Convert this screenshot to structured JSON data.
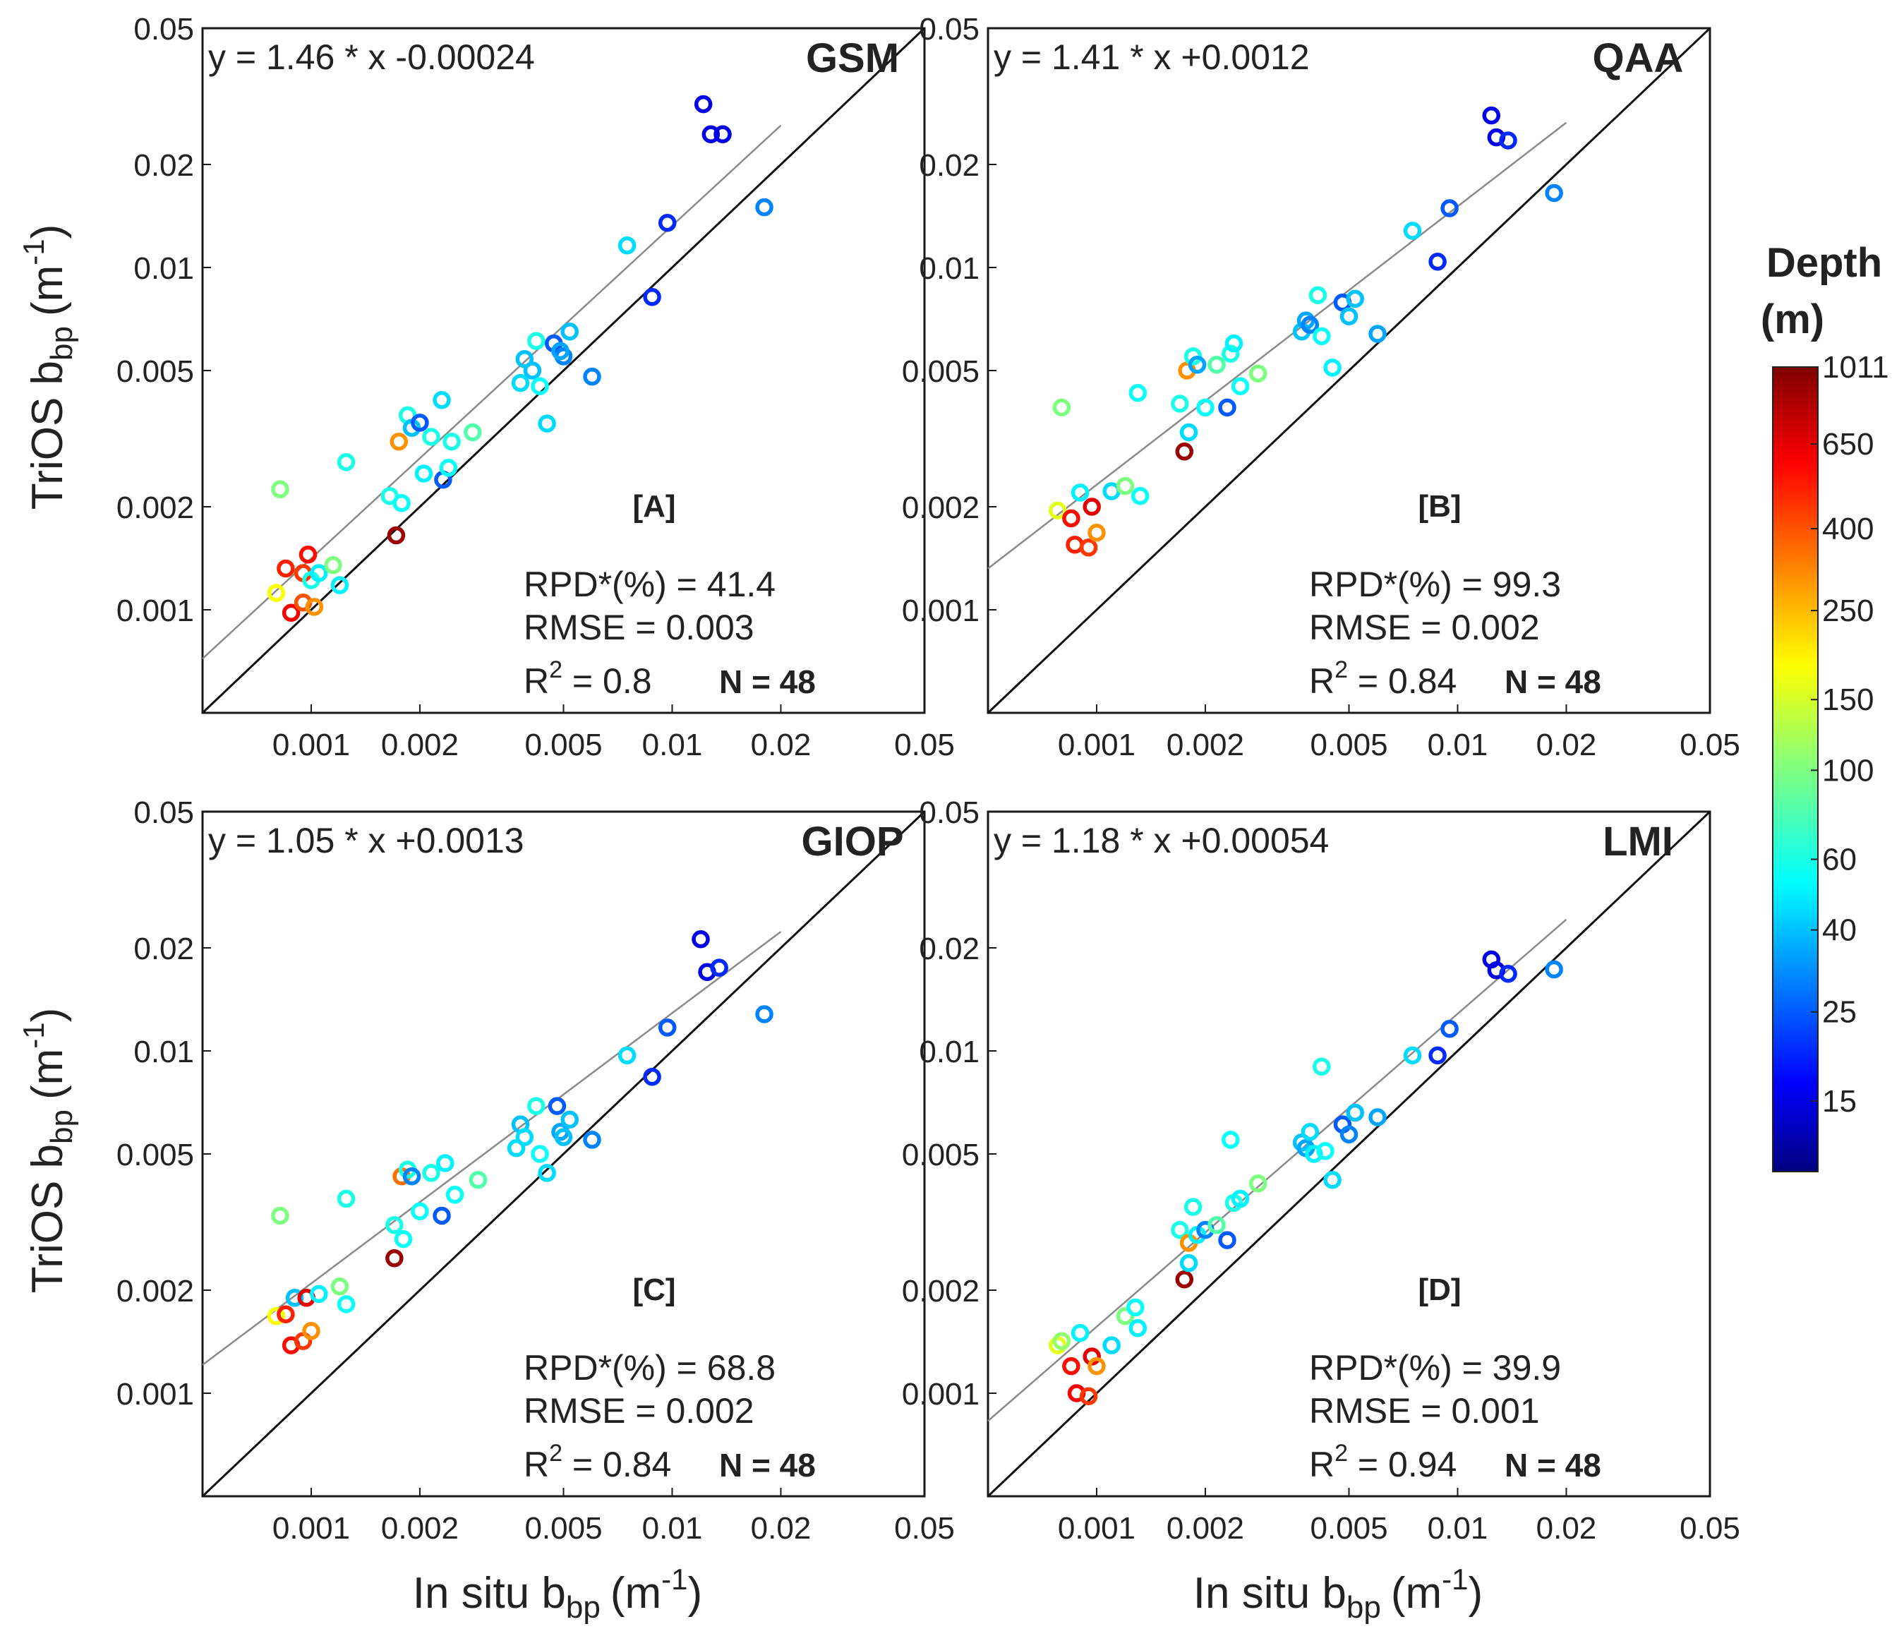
{
  "ylabel": "TriOS b",
  "ylabel_sub": "bp",
  "ylabel_unit": "(m",
  "ylabel_exp": "-1",
  "xlabel": "In situ b",
  "xlabel_sub": "bp",
  "xlabel_unit": "(m",
  "xlabel_exp": "-1",
  "colorbar": {
    "title1": "Depth",
    "title2": "(m)",
    "ticks": [
      "1011",
      "650",
      "400",
      "250",
      "150",
      "100",
      "60",
      "40",
      "25",
      "15"
    ],
    "stops": [
      {
        "v": 0.0,
        "c": "#00007f"
      },
      {
        "v": 0.11,
        "c": "#0000ff"
      },
      {
        "v": 0.36,
        "c": "#00ffff"
      },
      {
        "v": 0.5,
        "c": "#80ff80"
      },
      {
        "v": 0.63,
        "c": "#ffff00"
      },
      {
        "v": 0.88,
        "c": "#ff0000"
      },
      {
        "v": 1.0,
        "c": "#7f0000"
      }
    ]
  },
  "chart_data": [
    {
      "type": "scatter",
      "id": "A",
      "title": "GSM",
      "panel_label": "[A]",
      "equation": "y = 1.46 * x -0.00024",
      "rpd": "RPD*(%) = 41.4",
      "rmse": "RMSE = 0.003",
      "r2_prefix": "R",
      "r2_sup": "2",
      "r2_value": " = 0.8",
      "n": "N = 48",
      "xlim": [
        0.0005,
        0.05
      ],
      "ylim": [
        0.0005,
        0.05
      ],
      "xticks": [
        "0.001",
        "0.002",
        "0.005",
        "0.01",
        "0.02",
        "0.05"
      ],
      "yticks": [
        "0.001",
        "0.002",
        "0.005",
        "0.01",
        "0.02",
        "0.05"
      ],
      "fit": {
        "x1": 0.0005,
        "y1": 0.00072,
        "x2": 0.02,
        "y2": 0.026
      },
      "points": [
        {
          "x": 0.00082,
          "y": 0.00225,
          "d": 100
        },
        {
          "x": 0.0008,
          "y": 0.00112,
          "d": 180
        },
        {
          "x": 0.00085,
          "y": 0.00132,
          "d": 500
        },
        {
          "x": 0.00088,
          "y": 0.00098,
          "d": 600
        },
        {
          "x": 0.00095,
          "y": 0.00105,
          "d": 400
        },
        {
          "x": 0.00102,
          "y": 0.00102,
          "d": 300
        },
        {
          "x": 0.00098,
          "y": 0.00145,
          "d": 550
        },
        {
          "x": 0.00095,
          "y": 0.00128,
          "d": 450
        },
        {
          "x": 0.001,
          "y": 0.00122,
          "d": 60
        },
        {
          "x": 0.00105,
          "y": 0.00128,
          "d": 50
        },
        {
          "x": 0.00115,
          "y": 0.00135,
          "d": 100
        },
        {
          "x": 0.0012,
          "y": 0.00118,
          "d": 50
        },
        {
          "x": 0.00125,
          "y": 0.0027,
          "d": 60
        },
        {
          "x": 0.00165,
          "y": 0.00215,
          "d": 60
        },
        {
          "x": 0.00172,
          "y": 0.00165,
          "d": 900
        },
        {
          "x": 0.00175,
          "y": 0.0031,
          "d": 300
        },
        {
          "x": 0.00178,
          "y": 0.00205,
          "d": 55
        },
        {
          "x": 0.00185,
          "y": 0.0037,
          "d": 60
        },
        {
          "x": 0.0019,
          "y": 0.0034,
          "d": 40
        },
        {
          "x": 0.002,
          "y": 0.00352,
          "d": 25
        },
        {
          "x": 0.00205,
          "y": 0.0025,
          "d": 50
        },
        {
          "x": 0.00215,
          "y": 0.0032,
          "d": 60
        },
        {
          "x": 0.0023,
          "y": 0.0041,
          "d": 45
        },
        {
          "x": 0.00232,
          "y": 0.0024,
          "d": 25
        },
        {
          "x": 0.0024,
          "y": 0.0026,
          "d": 55
        },
        {
          "x": 0.00245,
          "y": 0.0031,
          "d": 60
        },
        {
          "x": 0.0028,
          "y": 0.0033,
          "d": 80
        },
        {
          "x": 0.0038,
          "y": 0.0046,
          "d": 45
        },
        {
          "x": 0.0039,
          "y": 0.0054,
          "d": 40
        },
        {
          "x": 0.0041,
          "y": 0.005,
          "d": 40
        },
        {
          "x": 0.0042,
          "y": 0.0061,
          "d": 60
        },
        {
          "x": 0.0043,
          "y": 0.0045,
          "d": 55
        },
        {
          "x": 0.0045,
          "y": 0.0035,
          "d": 45
        },
        {
          "x": 0.0047,
          "y": 0.006,
          "d": 25
        },
        {
          "x": 0.005,
          "y": 0.0055,
          "d": 30
        },
        {
          "x": 0.0052,
          "y": 0.0065,
          "d": 40
        },
        {
          "x": 0.0049,
          "y": 0.0057,
          "d": 35
        },
        {
          "x": 0.006,
          "y": 0.0048,
          "d": 30
        },
        {
          "x": 0.0075,
          "y": 0.0116,
          "d": 45
        },
        {
          "x": 0.0088,
          "y": 0.0082,
          "d": 20
        },
        {
          "x": 0.0097,
          "y": 0.0135,
          "d": 20
        },
        {
          "x": 0.0122,
          "y": 0.03,
          "d": 15
        },
        {
          "x": 0.0128,
          "y": 0.0245,
          "d": 15
        },
        {
          "x": 0.0138,
          "y": 0.0245,
          "d": 15
        },
        {
          "x": 0.018,
          "y": 0.015,
          "d": 30
        }
      ]
    },
    {
      "type": "scatter",
      "id": "B",
      "title": "QAA",
      "panel_label": "[B]",
      "equation": "y = 1.41 * x +0.0012",
      "rpd": "RPD*(%) = 99.3",
      "rmse": "RMSE = 0.002",
      "r2_prefix": "R",
      "r2_sup": "2",
      "r2_value": " = 0.84",
      "n": "N = 48",
      "xlim": [
        0.0005,
        0.05
      ],
      "ylim": [
        0.0005,
        0.05
      ],
      "xticks": [
        "0.001",
        "0.002",
        "0.005",
        "0.01",
        "0.02",
        "0.05"
      ],
      "yticks": [
        "0.001",
        "0.002",
        "0.005",
        "0.01",
        "0.02",
        "0.05"
      ],
      "fit": {
        "x1": 0.0005,
        "y1": 0.00132,
        "x2": 0.02,
        "y2": 0.0265
      },
      "points": [
        {
          "x": 0.00078,
          "y": 0.00195,
          "d": 160
        },
        {
          "x": 0.0008,
          "y": 0.0039,
          "d": 100
        },
        {
          "x": 0.00085,
          "y": 0.00185,
          "d": 550
        },
        {
          "x": 0.00087,
          "y": 0.00155,
          "d": 500
        },
        {
          "x": 0.0009,
          "y": 0.0022,
          "d": 50
        },
        {
          "x": 0.00095,
          "y": 0.00152,
          "d": 450
        },
        {
          "x": 0.00097,
          "y": 0.002,
          "d": 650
        },
        {
          "x": 0.001,
          "y": 0.00168,
          "d": 300
        },
        {
          "x": 0.0011,
          "y": 0.00222,
          "d": 45
        },
        {
          "x": 0.0012,
          "y": 0.0023,
          "d": 100
        },
        {
          "x": 0.0013,
          "y": 0.0043,
          "d": 55
        },
        {
          "x": 0.00132,
          "y": 0.00215,
          "d": 55
        },
        {
          "x": 0.0017,
          "y": 0.004,
          "d": 60
        },
        {
          "x": 0.00175,
          "y": 0.0029,
          "d": 900
        },
        {
          "x": 0.0018,
          "y": 0.0033,
          "d": 45
        },
        {
          "x": 0.00178,
          "y": 0.005,
          "d": 300
        },
        {
          "x": 0.00185,
          "y": 0.0055,
          "d": 60
        },
        {
          "x": 0.0019,
          "y": 0.0052,
          "d": 35
        },
        {
          "x": 0.002,
          "y": 0.0039,
          "d": 55
        },
        {
          "x": 0.00215,
          "y": 0.0052,
          "d": 80
        },
        {
          "x": 0.0023,
          "y": 0.0039,
          "d": 25
        },
        {
          "x": 0.00235,
          "y": 0.0056,
          "d": 60
        },
        {
          "x": 0.0024,
          "y": 0.006,
          "d": 50
        },
        {
          "x": 0.0025,
          "y": 0.0045,
          "d": 55
        },
        {
          "x": 0.0028,
          "y": 0.0049,
          "d": 100
        },
        {
          "x": 0.0037,
          "y": 0.0065,
          "d": 40
        },
        {
          "x": 0.0038,
          "y": 0.007,
          "d": 35
        },
        {
          "x": 0.0039,
          "y": 0.0068,
          "d": 30
        },
        {
          "x": 0.0041,
          "y": 0.0083,
          "d": 60
        },
        {
          "x": 0.0042,
          "y": 0.0063,
          "d": 55
        },
        {
          "x": 0.0045,
          "y": 0.0051,
          "d": 50
        },
        {
          "x": 0.0048,
          "y": 0.0079,
          "d": 25
        },
        {
          "x": 0.005,
          "y": 0.0072,
          "d": 40
        },
        {
          "x": 0.0052,
          "y": 0.0081,
          "d": 40
        },
        {
          "x": 0.006,
          "y": 0.0064,
          "d": 35
        },
        {
          "x": 0.0075,
          "y": 0.0128,
          "d": 45
        },
        {
          "x": 0.0088,
          "y": 0.0104,
          "d": 20
        },
        {
          "x": 0.0095,
          "y": 0.0149,
          "d": 25
        },
        {
          "x": 0.0124,
          "y": 0.0278,
          "d": 15
        },
        {
          "x": 0.0128,
          "y": 0.024,
          "d": 15
        },
        {
          "x": 0.0138,
          "y": 0.0235,
          "d": 20
        },
        {
          "x": 0.0185,
          "y": 0.0165,
          "d": 30
        }
      ]
    },
    {
      "type": "scatter",
      "id": "C",
      "title": "GIOP",
      "panel_label": "[C]",
      "equation": "y = 1.05 * x +0.0013",
      "rpd": "RPD*(%) = 68.8",
      "rmse": "RMSE = 0.002",
      "r2_prefix": "R",
      "r2_sup": "2",
      "r2_value": " = 0.84",
      "n": "N = 48",
      "xlim": [
        0.0005,
        0.05
      ],
      "ylim": [
        0.0005,
        0.05
      ],
      "xticks": [
        "0.001",
        "0.002",
        "0.005",
        "0.01",
        "0.02",
        "0.05"
      ],
      "yticks": [
        "0.001",
        "0.002",
        "0.005",
        "0.01",
        "0.02",
        "0.05"
      ],
      "fit": {
        "x1": 0.0005,
        "y1": 0.00121,
        "x2": 0.02,
        "y2": 0.0223
      },
      "points": [
        {
          "x": 0.00082,
          "y": 0.0033,
          "d": 100
        },
        {
          "x": 0.0008,
          "y": 0.00168,
          "d": 180
        },
        {
          "x": 0.00085,
          "y": 0.0017,
          "d": 500
        },
        {
          "x": 0.00088,
          "y": 0.00138,
          "d": 550
        },
        {
          "x": 0.0009,
          "y": 0.0019,
          "d": 40
        },
        {
          "x": 0.00095,
          "y": 0.00142,
          "d": 450
        },
        {
          "x": 0.00097,
          "y": 0.0019,
          "d": 650
        },
        {
          "x": 0.001,
          "y": 0.00152,
          "d": 300
        },
        {
          "x": 0.00105,
          "y": 0.00195,
          "d": 50
        },
        {
          "x": 0.0012,
          "y": 0.00205,
          "d": 100
        },
        {
          "x": 0.00125,
          "y": 0.00182,
          "d": 55
        },
        {
          "x": 0.00125,
          "y": 0.0037,
          "d": 60
        },
        {
          "x": 0.0017,
          "y": 0.0031,
          "d": 60
        },
        {
          "x": 0.0017,
          "y": 0.00248,
          "d": 900
        },
        {
          "x": 0.0018,
          "y": 0.00282,
          "d": 55
        },
        {
          "x": 0.00178,
          "y": 0.0043,
          "d": 350
        },
        {
          "x": 0.00185,
          "y": 0.0045,
          "d": 60
        },
        {
          "x": 0.0019,
          "y": 0.0043,
          "d": 30
        },
        {
          "x": 0.002,
          "y": 0.0034,
          "d": 55
        },
        {
          "x": 0.00215,
          "y": 0.0044,
          "d": 60
        },
        {
          "x": 0.0023,
          "y": 0.0033,
          "d": 25
        },
        {
          "x": 0.00235,
          "y": 0.0047,
          "d": 50
        },
        {
          "x": 0.0025,
          "y": 0.0038,
          "d": 55
        },
        {
          "x": 0.0029,
          "y": 0.0042,
          "d": 80
        },
        {
          "x": 0.0037,
          "y": 0.0052,
          "d": 45
        },
        {
          "x": 0.0038,
          "y": 0.0061,
          "d": 40
        },
        {
          "x": 0.0039,
          "y": 0.0056,
          "d": 45
        },
        {
          "x": 0.0042,
          "y": 0.0069,
          "d": 60
        },
        {
          "x": 0.0043,
          "y": 0.005,
          "d": 55
        },
        {
          "x": 0.0045,
          "y": 0.0044,
          "d": 45
        },
        {
          "x": 0.0048,
          "y": 0.0069,
          "d": 25
        },
        {
          "x": 0.0049,
          "y": 0.0058,
          "d": 35
        },
        {
          "x": 0.005,
          "y": 0.0056,
          "d": 40
        },
        {
          "x": 0.0052,
          "y": 0.0063,
          "d": 40
        },
        {
          "x": 0.006,
          "y": 0.0055,
          "d": 30
        },
        {
          "x": 0.0075,
          "y": 0.0097,
          "d": 45
        },
        {
          "x": 0.0088,
          "y": 0.0084,
          "d": 20
        },
        {
          "x": 0.0097,
          "y": 0.0117,
          "d": 25
        },
        {
          "x": 0.012,
          "y": 0.0212,
          "d": 15
        },
        {
          "x": 0.0125,
          "y": 0.017,
          "d": 15
        },
        {
          "x": 0.0135,
          "y": 0.0175,
          "d": 20
        },
        {
          "x": 0.018,
          "y": 0.0128,
          "d": 30
        }
      ]
    },
    {
      "type": "scatter",
      "id": "D",
      "title": "LMI",
      "panel_label": "[D]",
      "equation": "y = 1.18 * x +0.00054",
      "rpd": "RPD*(%) = 39.9",
      "rmse": "RMSE = 0.001",
      "r2_prefix": "R",
      "r2_sup": "2",
      "r2_value": " = 0.94",
      "n": "N = 48",
      "xlim": [
        0.0005,
        0.05
      ],
      "ylim": [
        0.0005,
        0.05
      ],
      "xticks": [
        "0.001",
        "0.002",
        "0.005",
        "0.01",
        "0.02",
        "0.05"
      ],
      "yticks": [
        "0.001",
        "0.002",
        "0.005",
        "0.01",
        "0.02",
        "0.05"
      ],
      "fit": {
        "x1": 0.0005,
        "y1": 0.00083,
        "x2": 0.02,
        "y2": 0.0242
      },
      "points": [
        {
          "x": 0.00078,
          "y": 0.00138,
          "d": 160
        },
        {
          "x": 0.0008,
          "y": 0.00142,
          "d": 110
        },
        {
          "x": 0.00085,
          "y": 0.0012,
          "d": 550
        },
        {
          "x": 0.00088,
          "y": 0.001,
          "d": 600
        },
        {
          "x": 0.0009,
          "y": 0.0015,
          "d": 50
        },
        {
          "x": 0.00095,
          "y": 0.00098,
          "d": 450
        },
        {
          "x": 0.00097,
          "y": 0.00128,
          "d": 650
        },
        {
          "x": 0.001,
          "y": 0.0012,
          "d": 300
        },
        {
          "x": 0.0011,
          "y": 0.00138,
          "d": 45
        },
        {
          "x": 0.0012,
          "y": 0.00168,
          "d": 100
        },
        {
          "x": 0.00128,
          "y": 0.00178,
          "d": 55
        },
        {
          "x": 0.0013,
          "y": 0.00155,
          "d": 50
        },
        {
          "x": 0.0017,
          "y": 0.003,
          "d": 60
        },
        {
          "x": 0.00175,
          "y": 0.00215,
          "d": 900
        },
        {
          "x": 0.0018,
          "y": 0.00275,
          "d": 300
        },
        {
          "x": 0.0018,
          "y": 0.0024,
          "d": 45
        },
        {
          "x": 0.00185,
          "y": 0.0035,
          "d": 60
        },
        {
          "x": 0.0019,
          "y": 0.0029,
          "d": 50
        },
        {
          "x": 0.002,
          "y": 0.003,
          "d": 30
        },
        {
          "x": 0.00215,
          "y": 0.0031,
          "d": 80
        },
        {
          "x": 0.0023,
          "y": 0.0028,
          "d": 25
        },
        {
          "x": 0.00235,
          "y": 0.0055,
          "d": 55
        },
        {
          "x": 0.0024,
          "y": 0.0036,
          "d": 60
        },
        {
          "x": 0.0025,
          "y": 0.0037,
          "d": 50
        },
        {
          "x": 0.0028,
          "y": 0.0041,
          "d": 100
        },
        {
          "x": 0.0037,
          "y": 0.0054,
          "d": 40
        },
        {
          "x": 0.0038,
          "y": 0.0052,
          "d": 35
        },
        {
          "x": 0.0039,
          "y": 0.0058,
          "d": 45
        },
        {
          "x": 0.004,
          "y": 0.005,
          "d": 50
        },
        {
          "x": 0.0042,
          "y": 0.009,
          "d": 60
        },
        {
          "x": 0.0043,
          "y": 0.0051,
          "d": 55
        },
        {
          "x": 0.0045,
          "y": 0.0042,
          "d": 45
        },
        {
          "x": 0.0048,
          "y": 0.0061,
          "d": 25
        },
        {
          "x": 0.005,
          "y": 0.0057,
          "d": 30
        },
        {
          "x": 0.0052,
          "y": 0.0066,
          "d": 40
        },
        {
          "x": 0.006,
          "y": 0.0064,
          "d": 35
        },
        {
          "x": 0.0075,
          "y": 0.0097,
          "d": 45
        },
        {
          "x": 0.0088,
          "y": 0.0097,
          "d": 20
        },
        {
          "x": 0.0095,
          "y": 0.0116,
          "d": 25
        },
        {
          "x": 0.0124,
          "y": 0.0185,
          "d": 15
        },
        {
          "x": 0.0128,
          "y": 0.0172,
          "d": 15
        },
        {
          "x": 0.0138,
          "y": 0.0168,
          "d": 20
        },
        {
          "x": 0.0185,
          "y": 0.0173,
          "d": 30
        }
      ]
    }
  ]
}
